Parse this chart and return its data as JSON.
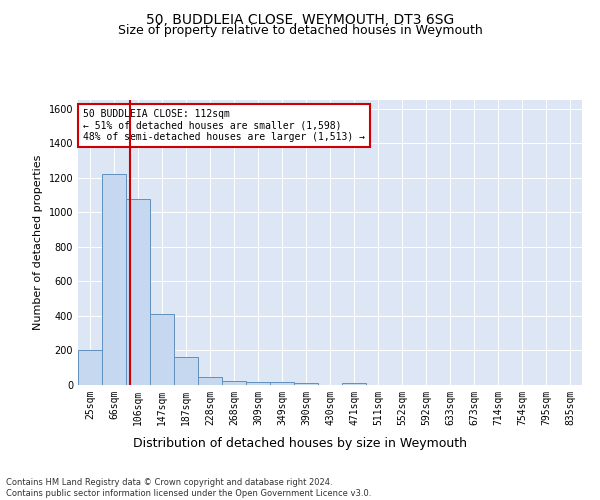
{
  "title": "50, BUDDLEIA CLOSE, WEYMOUTH, DT3 6SG",
  "subtitle": "Size of property relative to detached houses in Weymouth",
  "xlabel": "Distribution of detached houses by size in Weymouth",
  "ylabel": "Number of detached properties",
  "bin_labels": [
    "25sqm",
    "66sqm",
    "106sqm",
    "147sqm",
    "187sqm",
    "228sqm",
    "268sqm",
    "309sqm",
    "349sqm",
    "390sqm",
    "430sqm",
    "471sqm",
    "511sqm",
    "552sqm",
    "592sqm",
    "633sqm",
    "673sqm",
    "714sqm",
    "754sqm",
    "795sqm",
    "835sqm"
  ],
  "bar_values": [
    203,
    1220,
    1075,
    410,
    160,
    45,
    25,
    20,
    15,
    12,
    0,
    10,
    0,
    0,
    0,
    0,
    0,
    0,
    0,
    0,
    0
  ],
  "bar_color": "#c5d8ef",
  "bar_edge_color": "#6090c0",
  "annotation_text": "50 BUDDLEIA CLOSE: 112sqm\n← 51% of detached houses are smaller (1,598)\n48% of semi-detached houses are larger (1,513) →",
  "annotation_box_color": "#ffffff",
  "annotation_box_edge": "#cc0000",
  "vline_color": "#cc0000",
  "ylim": [
    0,
    1650
  ],
  "yticks": [
    0,
    200,
    400,
    600,
    800,
    1000,
    1200,
    1400,
    1600
  ],
  "background_color": "#dce6f5",
  "footer_text": "Contains HM Land Registry data © Crown copyright and database right 2024.\nContains public sector information licensed under the Open Government Licence v3.0.",
  "title_fontsize": 10,
  "subtitle_fontsize": 9,
  "xlabel_fontsize": 9,
  "ylabel_fontsize": 8,
  "tick_fontsize": 7,
  "annot_fontsize": 7,
  "footer_fontsize": 6
}
